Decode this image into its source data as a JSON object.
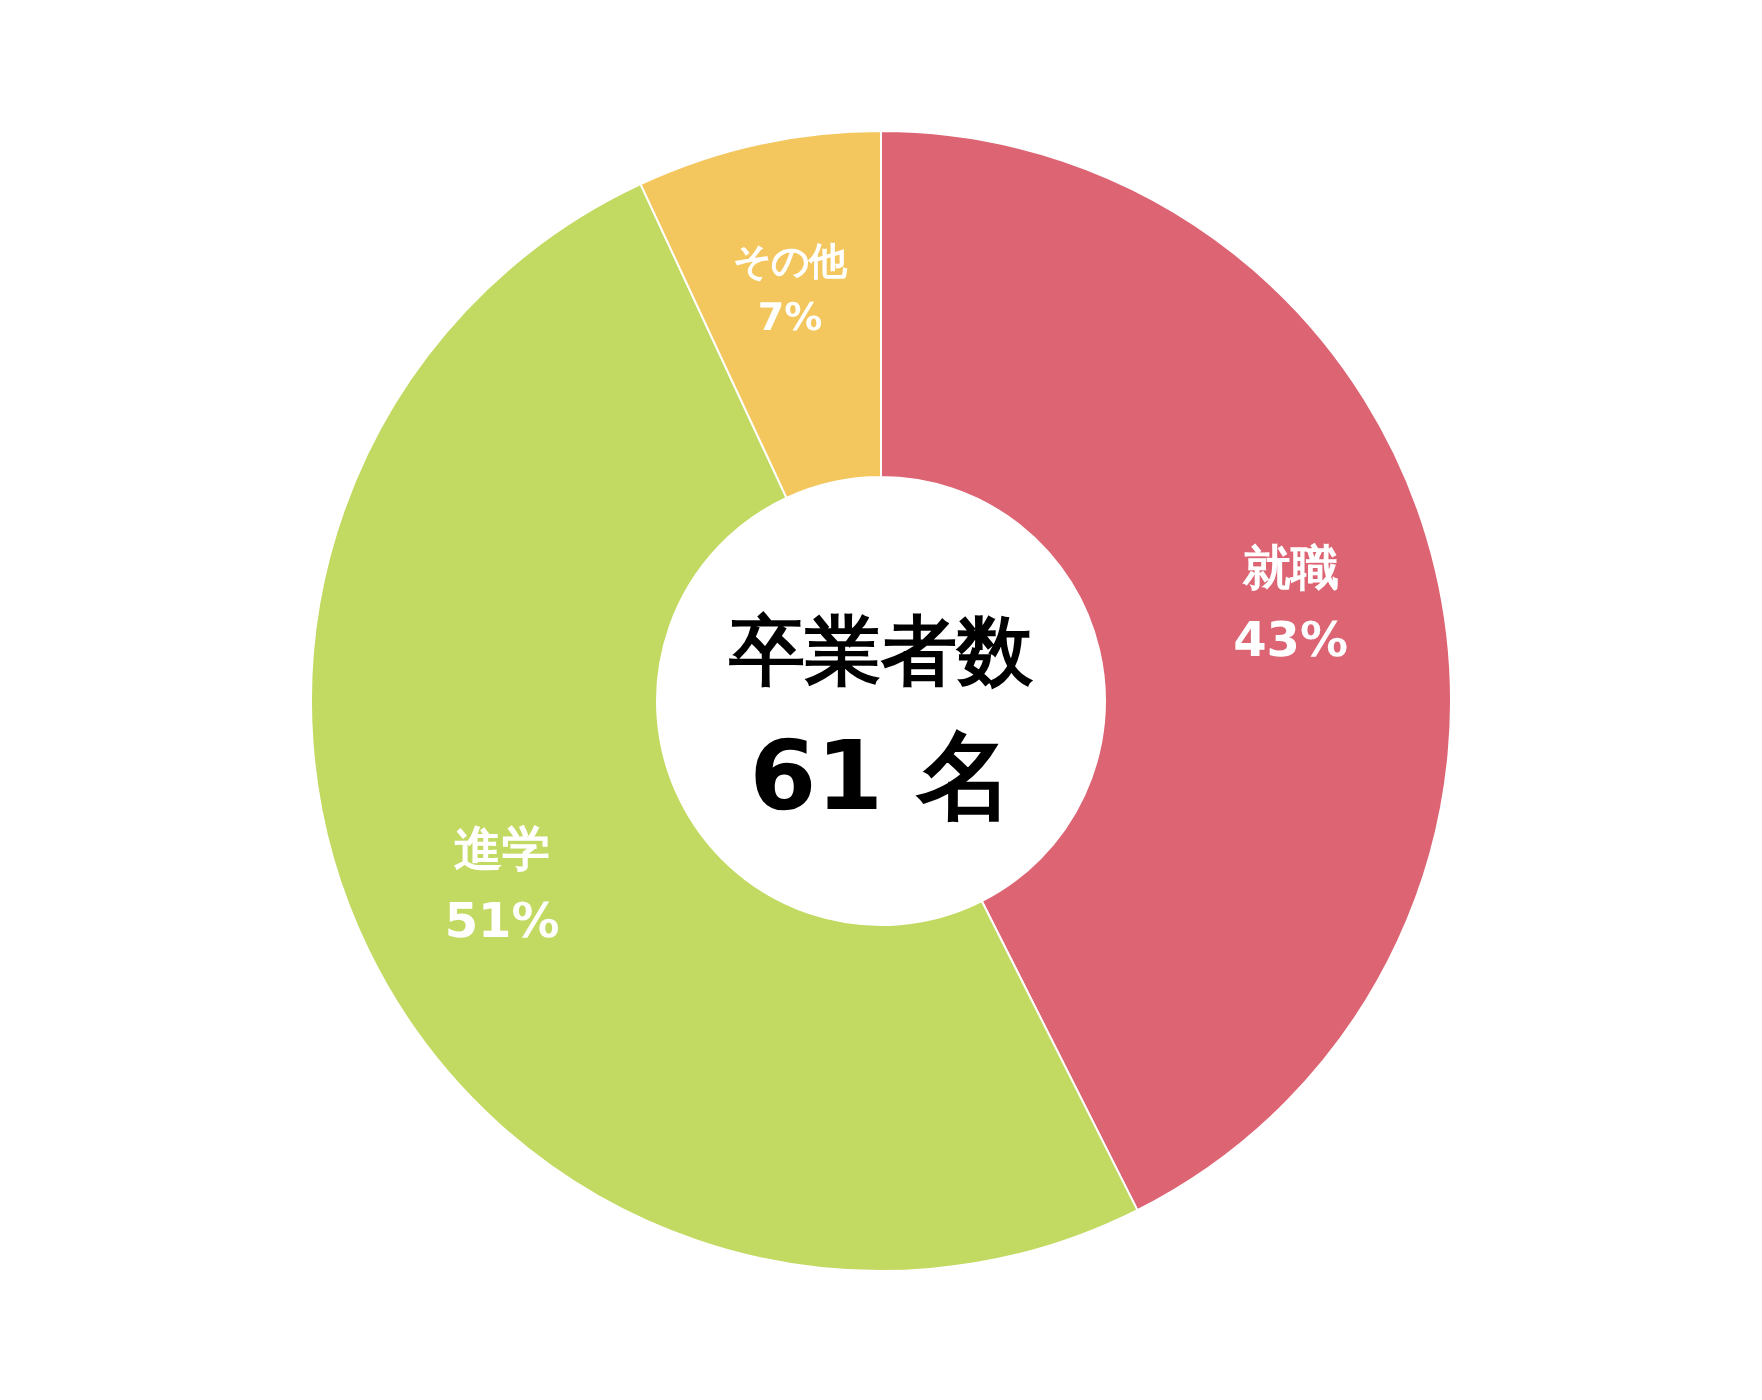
{
  "chart_data": {
    "type": "donut",
    "title": "卒業者数",
    "annotations": [
      "61 名"
    ],
    "categories": [
      "就職",
      "進学",
      "その他"
    ],
    "values": [
      43,
      51,
      7
    ],
    "value_labels": [
      "43%",
      "51%",
      "7%"
    ],
    "colors": [
      "#dc6473",
      "#c2d962",
      "#f3c75e"
    ]
  }
}
